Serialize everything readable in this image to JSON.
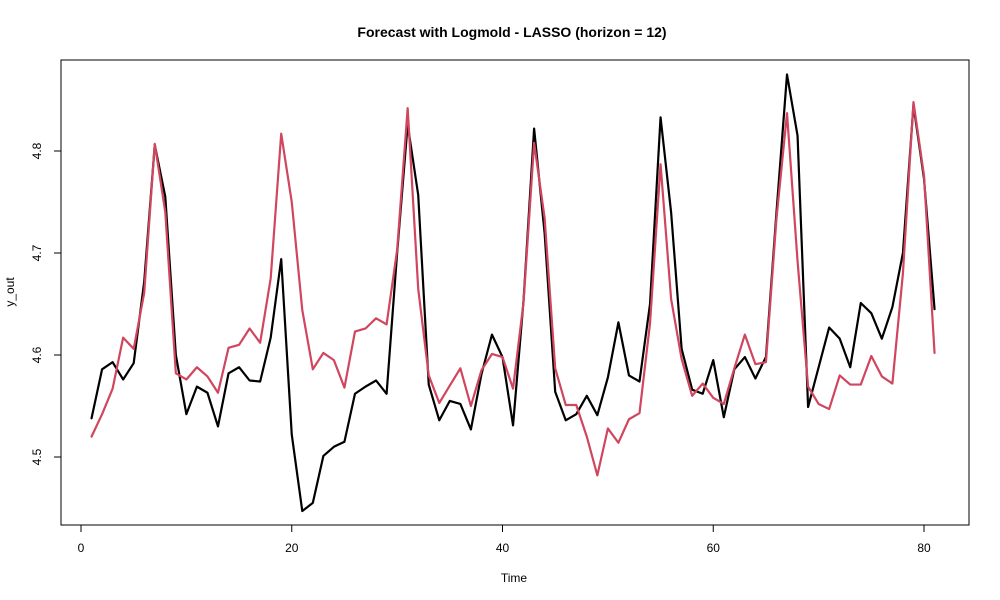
{
  "chart_data": {
    "type": "line",
    "title": "Forecast with Logmold - LASSO (horizon = 12)",
    "xlabel": "Time",
    "ylabel": "y_out",
    "xlim": [
      0,
      82
    ],
    "ylim": [
      4.45,
      4.88
    ],
    "xticks": [
      0,
      20,
      40,
      60,
      80
    ],
    "yticks": [
      4.5,
      4.6,
      4.7,
      4.8
    ],
    "grid": false,
    "legend": "none",
    "x": [
      1,
      2,
      3,
      4,
      5,
      6,
      7,
      8,
      9,
      10,
      11,
      12,
      13,
      14,
      15,
      16,
      17,
      18,
      19,
      20,
      21,
      22,
      23,
      24,
      25,
      26,
      27,
      28,
      29,
      30,
      31,
      32,
      33,
      34,
      35,
      36,
      37,
      38,
      39,
      40,
      41,
      42,
      43,
      44,
      45,
      46,
      47,
      48,
      49,
      50,
      51,
      52,
      53,
      54,
      55,
      56,
      57,
      58,
      59,
      60,
      61,
      62,
      63,
      64,
      65,
      66,
      67,
      68,
      69,
      70,
      71,
      72,
      73,
      74,
      75,
      76,
      77,
      78,
      79,
      80,
      81
    ],
    "series": [
      {
        "color": "#000000",
        "values": [
          4.538,
          4.586,
          4.593,
          4.576,
          4.592,
          4.672,
          4.806,
          4.755,
          4.6,
          4.542,
          4.569,
          4.563,
          4.53,
          4.582,
          4.588,
          4.575,
          4.574,
          4.617,
          4.694,
          4.522,
          4.447,
          4.455,
          4.501,
          4.51,
          4.515,
          4.562,
          4.569,
          4.575,
          4.562,
          4.7,
          4.826,
          4.757,
          4.571,
          4.536,
          4.555,
          4.552,
          4.527,
          4.581,
          4.62,
          4.598,
          4.531,
          4.654,
          4.822,
          4.719,
          4.564,
          4.536,
          4.542,
          4.56,
          4.541,
          4.578,
          4.632,
          4.58,
          4.574,
          4.65,
          4.833,
          4.74,
          4.606,
          4.566,
          4.562,
          4.595,
          4.539,
          4.586,
          4.598,
          4.577,
          4.598,
          4.74,
          4.875,
          4.815,
          4.549,
          4.588,
          4.627,
          4.616,
          4.588,
          4.651,
          4.641,
          4.616,
          4.647,
          4.7,
          4.845,
          4.773,
          4.645
        ]
      },
      {
        "color": "#D0465E",
        "values": [
          4.52,
          4.542,
          4.567,
          4.617,
          4.606,
          4.661,
          4.807,
          4.74,
          4.582,
          4.576,
          4.588,
          4.579,
          4.563,
          4.607,
          4.61,
          4.626,
          4.612,
          4.675,
          4.817,
          4.75,
          4.644,
          4.586,
          4.602,
          4.595,
          4.568,
          4.623,
          4.626,
          4.636,
          4.63,
          4.703,
          4.842,
          4.665,
          4.58,
          4.553,
          4.57,
          4.587,
          4.55,
          4.585,
          4.601,
          4.598,
          4.567,
          4.652,
          4.808,
          4.734,
          4.587,
          4.551,
          4.551,
          4.52,
          4.482,
          4.528,
          4.514,
          4.537,
          4.543,
          4.631,
          4.787,
          4.655,
          4.596,
          4.56,
          4.572,
          4.558,
          4.552,
          4.587,
          4.62,
          4.591,
          4.593,
          4.734,
          4.837,
          4.692,
          4.569,
          4.552,
          4.547,
          4.58,
          4.571,
          4.571,
          4.599,
          4.579,
          4.572,
          4.68,
          4.848,
          4.776,
          4.602
        ]
      }
    ]
  }
}
